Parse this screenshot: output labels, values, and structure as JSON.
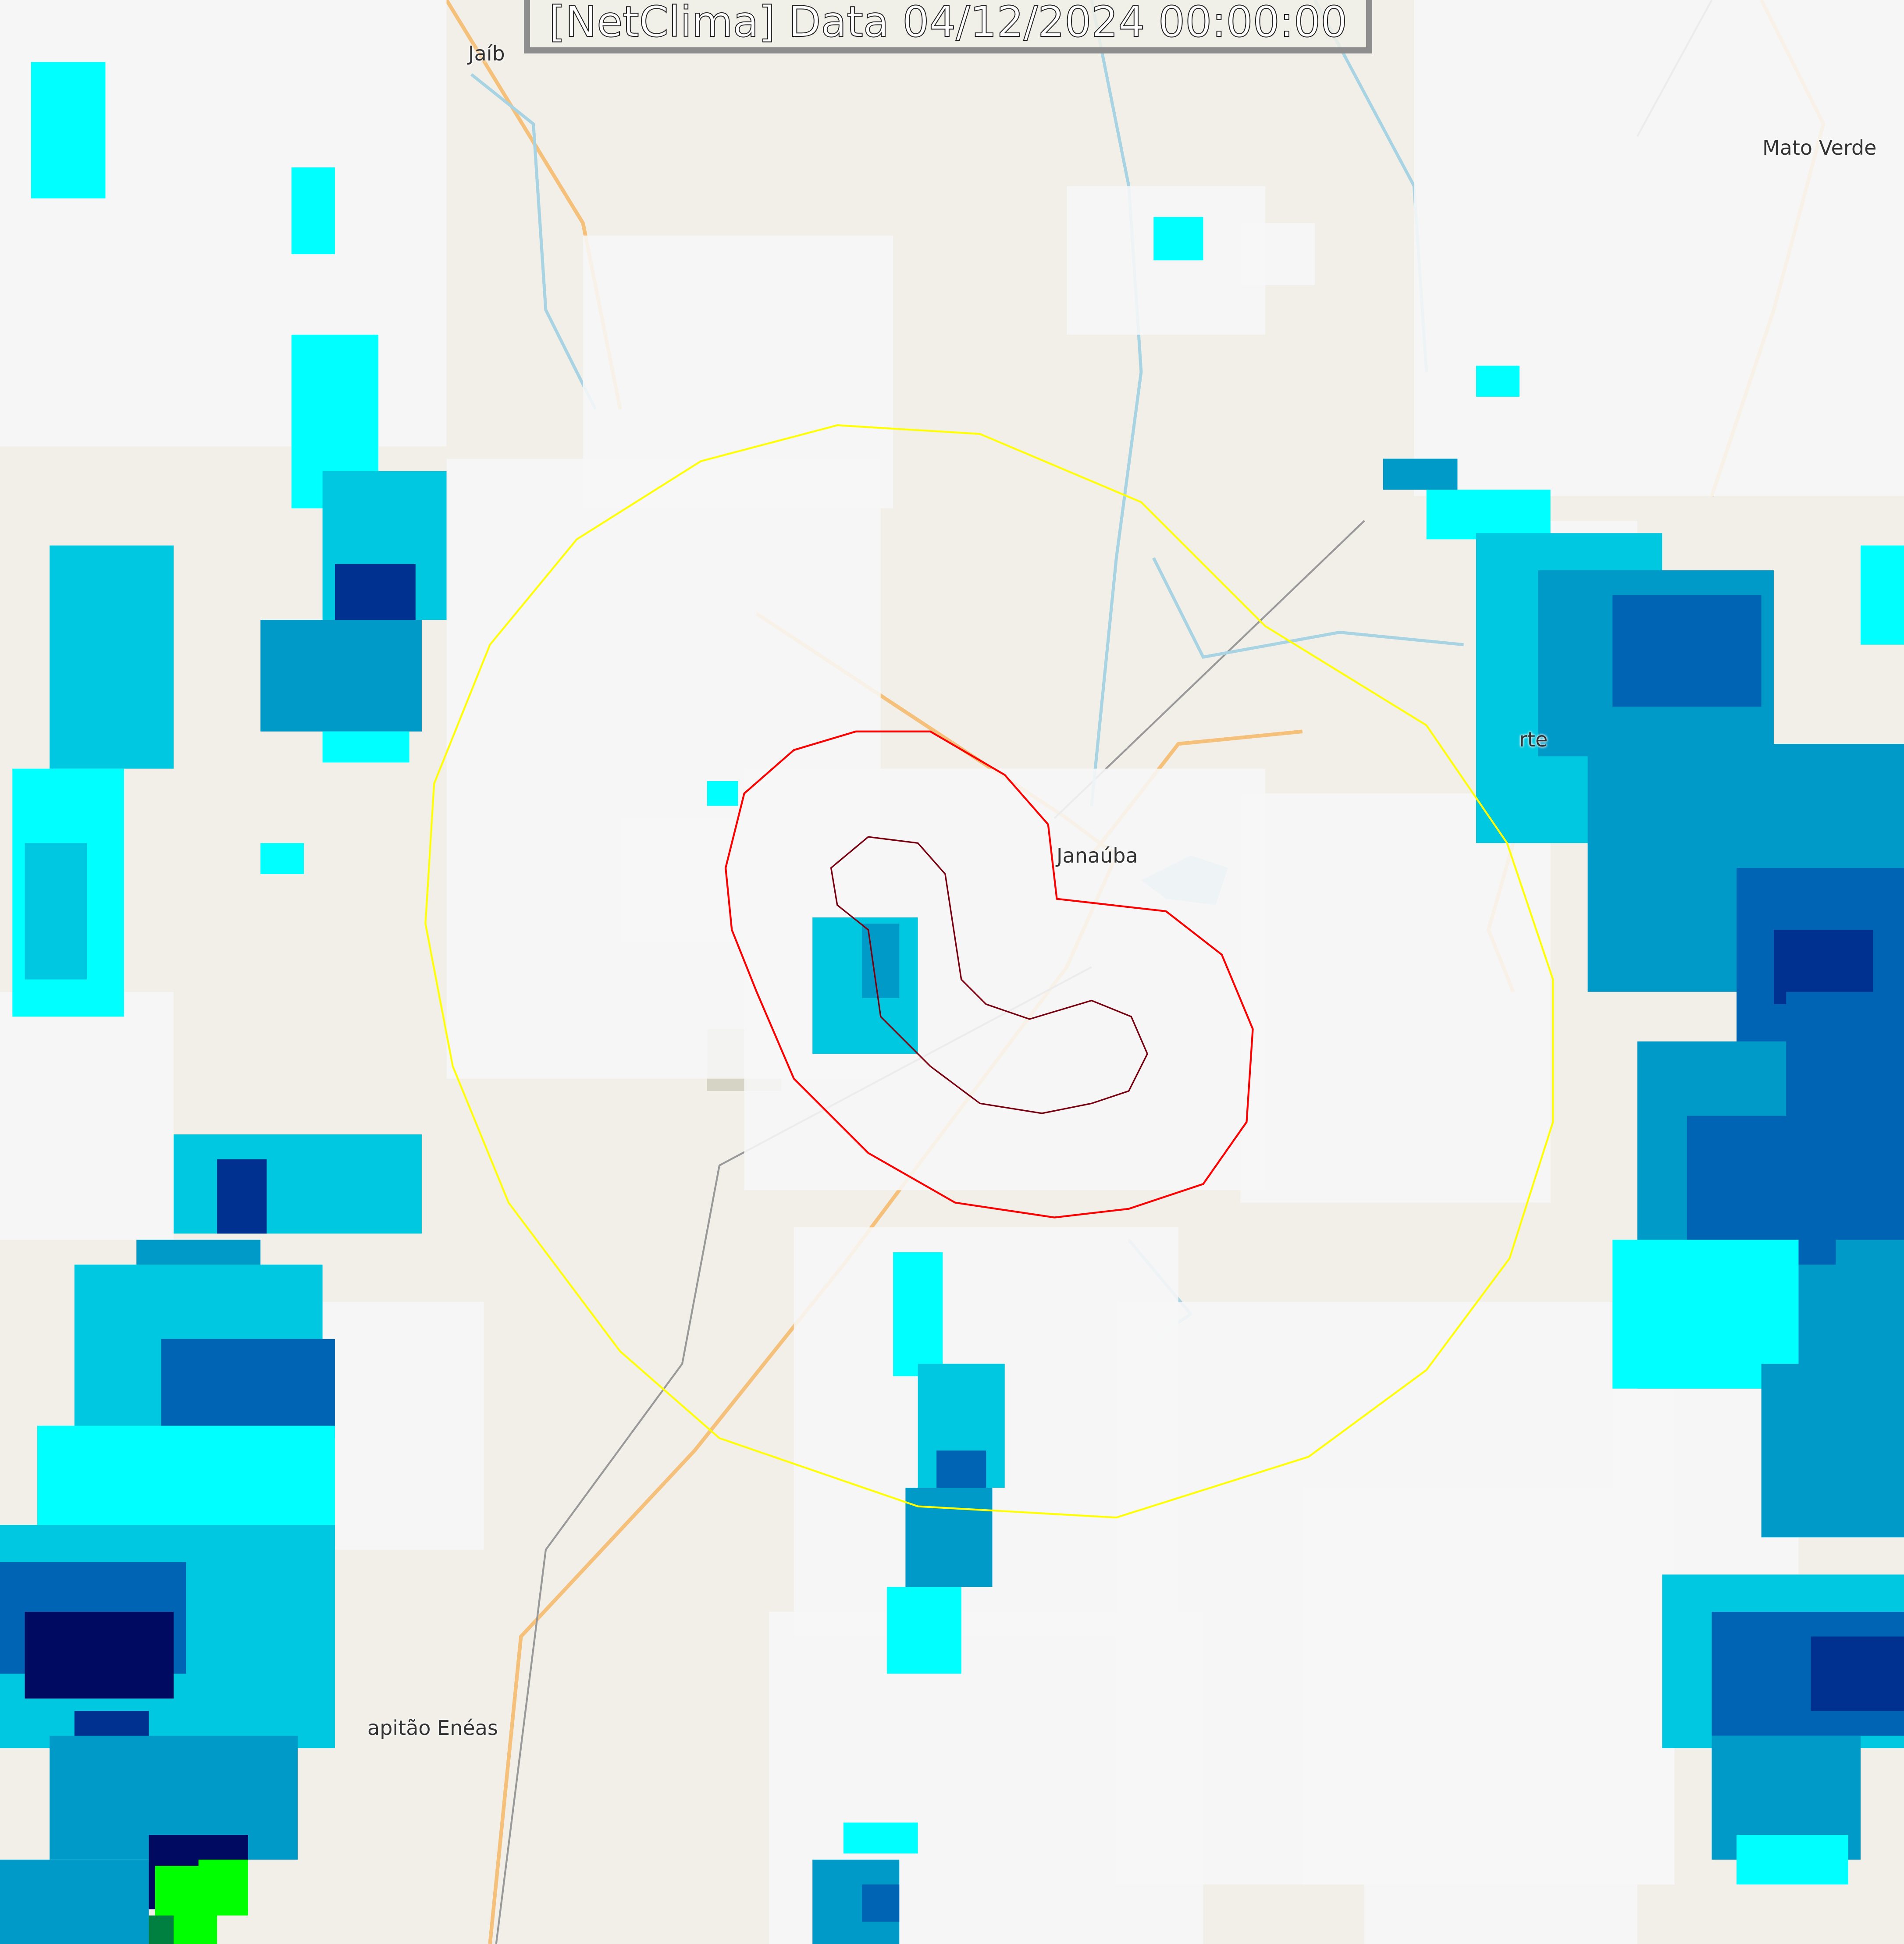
{
  "title": "[NetClima] Data 04/12/2024 00:00:00",
  "places": {
    "jaiba": "Jaíb",
    "mato_verde": "Mato Verde",
    "porteirinha": "rte",
    "janauba": "Janaúba",
    "capitao_eneas": "apitão Enéas"
  },
  "colors": {
    "land": "#f2efe9",
    "road_major": "#f5c07a",
    "river": "#a8d3e3",
    "outer_ring": "#ffff00",
    "inner_ring": "#ff0000",
    "core_ring": "#7a0010",
    "radar_scale": [
      "#f7f7f7",
      "#00ffff",
      "#00c8e0",
      "#009ac8",
      "#0064b4",
      "#003090",
      "#000a60",
      "#00ff00",
      "#008040"
    ]
  }
}
